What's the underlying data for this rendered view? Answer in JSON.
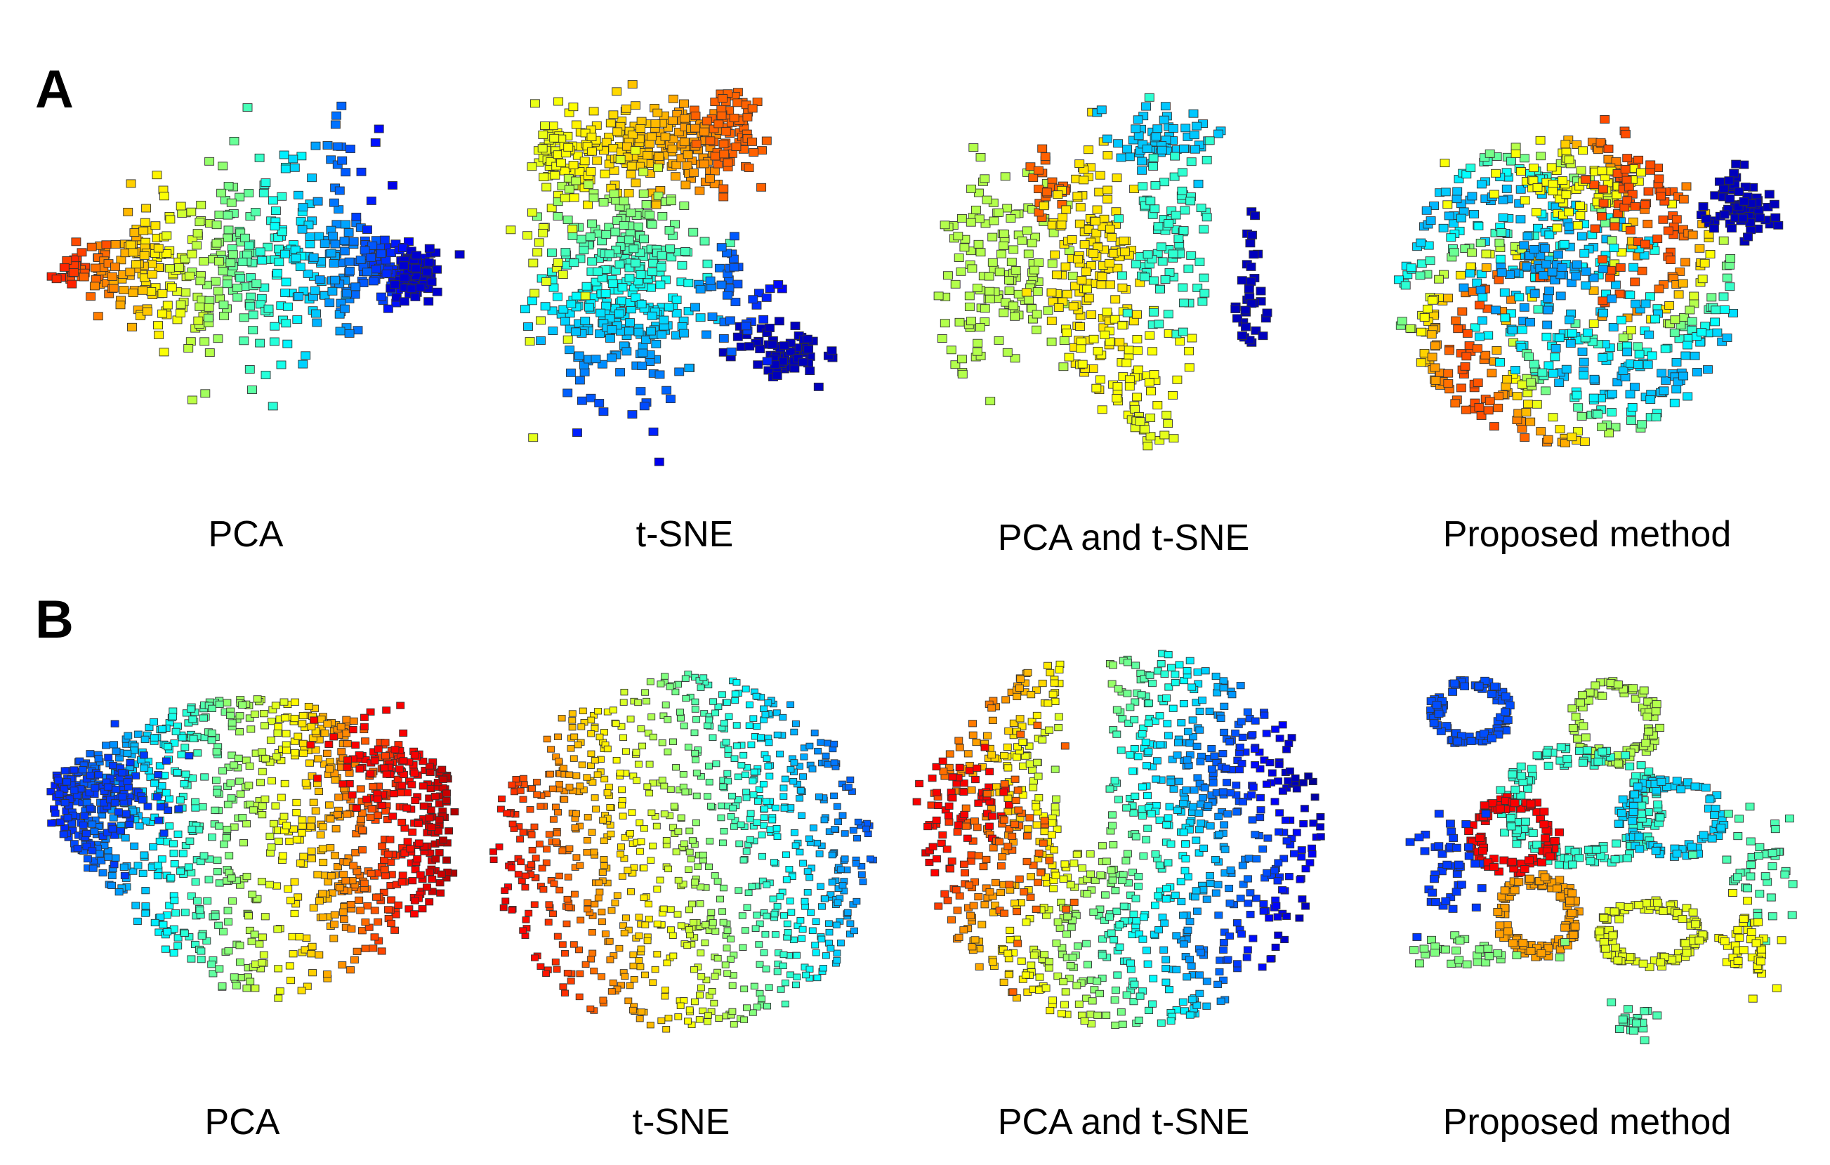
{
  "figure": {
    "panels": [
      {
        "id": "A",
        "letter": "A",
        "plots": [
          {
            "caption": "PCA",
            "method": "pca",
            "shape": "elongated-horizontal",
            "cmap_order": "orange-left-to-blue-right"
          },
          {
            "caption": "t-SNE",
            "method": "tsne",
            "shape": "banana-plus-detached-blue-cluster"
          },
          {
            "caption": "PCA and t-SNE",
            "method": "pca_tsne",
            "shape": "several-clusters"
          },
          {
            "caption": "Proposed method",
            "method": "proposed",
            "shape": "round-mixed-plus-blue-cluster"
          }
        ]
      },
      {
        "id": "B",
        "letter": "B",
        "plots": [
          {
            "caption": "PCA",
            "method": "pca",
            "shape": "fan",
            "cmap_order": "blue-left-to-red-right"
          },
          {
            "caption": "t-SNE",
            "method": "tsne",
            "shape": "disc-sparse"
          },
          {
            "caption": "PCA and t-SNE",
            "method": "pca_tsne",
            "shape": "disc-with-gap"
          },
          {
            "caption": "Proposed method",
            "method": "proposed",
            "shape": "separated-loops"
          }
        ]
      }
    ]
  },
  "chart_data": [
    {
      "type": "scatter",
      "title": "PCA",
      "xlabel": "",
      "ylabel": "",
      "marker": "square",
      "colormap": "jet",
      "grid": false
    },
    {
      "type": "scatter",
      "title": "t-SNE",
      "xlabel": "",
      "ylabel": "",
      "marker": "square",
      "colormap": "jet",
      "grid": false
    },
    {
      "type": "scatter",
      "title": "PCA and t-SNE",
      "xlabel": "",
      "ylabel": "",
      "marker": "square",
      "colormap": "jet",
      "grid": false
    },
    {
      "type": "scatter",
      "title": "Proposed method",
      "xlabel": "",
      "ylabel": "",
      "marker": "square",
      "colormap": "jet",
      "grid": false
    },
    {
      "type": "scatter",
      "title": "PCA",
      "xlabel": "",
      "ylabel": "",
      "marker": "square",
      "colormap": "jet",
      "grid": false
    },
    {
      "type": "scatter",
      "title": "t-SNE",
      "xlabel": "",
      "ylabel": "",
      "marker": "square",
      "colormap": "jet",
      "grid": false
    },
    {
      "type": "scatter",
      "title": "PCA and t-SNE",
      "xlabel": "",
      "ylabel": "",
      "marker": "square",
      "colormap": "jet",
      "grid": false
    },
    {
      "type": "scatter",
      "title": "Proposed method",
      "xlabel": "",
      "ylabel": "",
      "marker": "square",
      "colormap": "jet",
      "grid": false
    }
  ],
  "colors": {
    "jet_dark_blue": "#00007f",
    "jet_blue": "#0055ff",
    "jet_cyan": "#00e5ff",
    "jet_green": "#7fff7f",
    "jet_yellow": "#ffe600",
    "jet_orange": "#ff7f00",
    "jet_red": "#c80000",
    "marker_edge": "#333333"
  }
}
